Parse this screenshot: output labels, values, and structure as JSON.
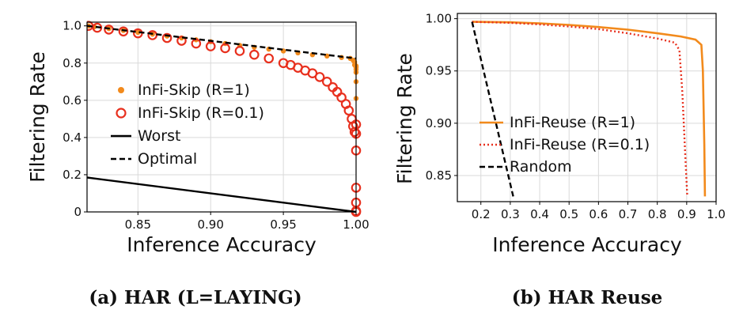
{
  "chart_data": [
    {
      "type": "line",
      "caption": "(a) HAR (L=LAYING)",
      "xlabel": "Inference Accuracy",
      "ylabel": "Filtering Rate",
      "xlim": [
        0.815,
        1.0
      ],
      "ylim": [
        0,
        1.02
      ],
      "xticks": [
        "0.85",
        "0.90",
        "0.95",
        "1.00"
      ],
      "xtick_values": [
        0.85,
        0.9,
        0.95,
        1.0
      ],
      "yticks": [
        "0",
        "0.2",
        "0.4",
        "0.6",
        "0.8",
        "1.0"
      ],
      "ytick_values": [
        0,
        0.2,
        0.4,
        0.6,
        0.8,
        1.0
      ],
      "grid": true,
      "legend": "center-left",
      "series": [
        {
          "name": "InFi-Skip (R=1)",
          "style": "dots",
          "color": "#f28a1c",
          "x": [
            0.816,
            0.82,
            0.83,
            0.84,
            0.85,
            0.86,
            0.87,
            0.88,
            0.89,
            0.9,
            0.91,
            0.92,
            0.93,
            0.94,
            0.95,
            0.96,
            0.97,
            0.98,
            0.99,
            0.996,
            0.998,
            0.999,
            0.999,
            1.0,
            1.0,
            1.0,
            1.0,
            1.0,
            1.0,
            1.0
          ],
          "y": [
            1.0,
            0.995,
            0.985,
            0.975,
            0.965,
            0.955,
            0.945,
            0.935,
            0.925,
            0.915,
            0.905,
            0.895,
            0.885,
            0.875,
            0.865,
            0.855,
            0.845,
            0.838,
            0.83,
            0.825,
            0.815,
            0.805,
            0.79,
            0.785,
            0.78,
            0.775,
            0.765,
            0.75,
            0.7,
            0.61
          ]
        },
        {
          "name": "InFi-Skip (R=0.1)",
          "style": "circles",
          "color": "#e8301e",
          "x": [
            0.816,
            0.822,
            0.83,
            0.84,
            0.85,
            0.86,
            0.87,
            0.88,
            0.89,
            0.9,
            0.91,
            0.92,
            0.93,
            0.94,
            0.95,
            0.955,
            0.96,
            0.965,
            0.97,
            0.975,
            0.98,
            0.984,
            0.987,
            0.99,
            0.993,
            0.995,
            0.997,
            0.998,
            0.999,
            1.0,
            1.0,
            1.0,
            1.0,
            1.0,
            1.0,
            1.0
          ],
          "y": [
            1.0,
            0.99,
            0.98,
            0.97,
            0.96,
            0.95,
            0.935,
            0.92,
            0.905,
            0.89,
            0.88,
            0.865,
            0.845,
            0.825,
            0.8,
            0.79,
            0.775,
            0.76,
            0.745,
            0.725,
            0.7,
            0.67,
            0.645,
            0.615,
            0.58,
            0.545,
            0.5,
            0.46,
            0.43,
            0.47,
            0.42,
            0.33,
            0.13,
            0.05,
            0.005,
            0.0
          ]
        },
        {
          "name": "Worst",
          "style": "solid",
          "color": "#000000",
          "x": [
            0.815,
            1.0
          ],
          "y": [
            0.185,
            0.0
          ]
        },
        {
          "name": "Optimal",
          "style": "dashed",
          "color": "#000000",
          "x": [
            0.815,
            1.0
          ],
          "y": [
            1.0,
            0.825
          ]
        }
      ]
    },
    {
      "type": "line",
      "caption": "(b) HAR Reuse",
      "xlabel": "Inference Accuracy",
      "ylabel": "Filtering Rate",
      "xlim": [
        0.12,
        1.0
      ],
      "ylim": [
        0.825,
        1.005
      ],
      "xticks": [
        "0.2",
        "0.3",
        "0.4",
        "0.5",
        "0.6",
        "0.7",
        "0.8",
        "0.9",
        "1.0"
      ],
      "xtick_values": [
        0.2,
        0.3,
        0.4,
        0.5,
        0.6,
        0.7,
        0.8,
        0.9,
        1.0
      ],
      "yticks": [
        "0.85",
        "0.90",
        "0.95",
        "1.00"
      ],
      "ytick_values": [
        0.85,
        0.9,
        0.95,
        1.0
      ],
      "grid": true,
      "legend": "center-left",
      "series": [
        {
          "name": "InFi-Reuse (R=1)",
          "style": "solid",
          "color": "#f28a1c",
          "x": [
            0.17,
            0.3,
            0.4,
            0.5,
            0.6,
            0.7,
            0.8,
            0.88,
            0.93,
            0.95,
            0.955,
            0.96,
            0.962
          ],
          "y": [
            0.997,
            0.9965,
            0.9955,
            0.994,
            0.992,
            0.9895,
            0.986,
            0.983,
            0.98,
            0.975,
            0.95,
            0.88,
            0.83
          ]
        },
        {
          "name": "InFi-Reuse (R=0.1)",
          "style": "dotted",
          "color": "#e8301e",
          "x": [
            0.17,
            0.3,
            0.4,
            0.5,
            0.6,
            0.7,
            0.8,
            0.86,
            0.875,
            0.885,
            0.895,
            0.902
          ],
          "y": [
            0.997,
            0.996,
            0.9945,
            0.9925,
            0.99,
            0.986,
            0.981,
            0.977,
            0.97,
            0.93,
            0.87,
            0.83
          ]
        },
        {
          "name": "Random",
          "style": "dashed",
          "color": "#000000",
          "x": [
            0.17,
            0.31
          ],
          "y": [
            0.997,
            0.83
          ]
        }
      ]
    }
  ]
}
